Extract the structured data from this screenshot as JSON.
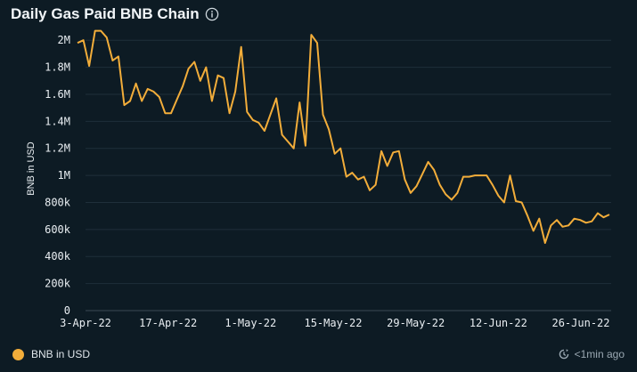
{
  "header": {
    "title": "Daily Gas Paid BNB Chain",
    "info_icon": "info-icon"
  },
  "chart_data": {
    "type": "line",
    "title": "Daily Gas Paid BNB Chain",
    "xlabel": "",
    "ylabel": "BNB in USD",
    "ylim": [
      0,
      2100000
    ],
    "grid": true,
    "legend_placement": "bottom-left",
    "x_ticks": [
      "3-Apr-22",
      "17-Apr-22",
      "1-May-22",
      "15-May-22",
      "29-May-22",
      "12-Jun-22",
      "26-Jun-22"
    ],
    "y_ticks": [
      {
        "value": 0,
        "label": "0"
      },
      {
        "value": 200000,
        "label": "200k"
      },
      {
        "value": 400000,
        "label": "400k"
      },
      {
        "value": 600000,
        "label": "600k"
      },
      {
        "value": 800000,
        "label": "800k"
      },
      {
        "value": 1000000,
        "label": "1M"
      },
      {
        "value": 1200000,
        "label": "1.2M"
      },
      {
        "value": 1400000,
        "label": "1.4M"
      },
      {
        "value": 1600000,
        "label": "1.6M"
      },
      {
        "value": 1800000,
        "label": "1.8M"
      },
      {
        "value": 2000000,
        "label": "2M"
      }
    ],
    "x_start": "2022-04-03",
    "x_end": "2022-06-30",
    "series": [
      {
        "name": "BNB in USD",
        "color": "#f2ad3a",
        "values": [
          1980000,
          2000000,
          1810000,
          2070000,
          2070000,
          2020000,
          1850000,
          1880000,
          1520000,
          1550000,
          1680000,
          1550000,
          1640000,
          1620000,
          1580000,
          1460000,
          1460000,
          1560000,
          1660000,
          1790000,
          1840000,
          1700000,
          1800000,
          1550000,
          1740000,
          1720000,
          1460000,
          1620000,
          1950000,
          1470000,
          1410000,
          1390000,
          1330000,
          1450000,
          1570000,
          1300000,
          1250000,
          1200000,
          1540000,
          1220000,
          2040000,
          1980000,
          1450000,
          1340000,
          1160000,
          1200000,
          990000,
          1020000,
          970000,
          990000,
          890000,
          930000,
          1180000,
          1070000,
          1170000,
          1180000,
          970000,
          870000,
          920000,
          1010000,
          1100000,
          1040000,
          930000,
          860000,
          820000,
          870000,
          990000,
          990000,
          1000000,
          1000000,
          1000000,
          930000,
          850000,
          800000,
          1000000,
          810000,
          800000,
          700000,
          590000,
          680000,
          500000,
          630000,
          670000,
          620000,
          630000,
          680000,
          670000,
          650000,
          660000,
          720000,
          690000,
          710000
        ]
      }
    ]
  },
  "legend": {
    "label": "BNB in USD",
    "color": "#f2ad3a"
  },
  "footer": {
    "updated": "<1min ago",
    "icon": "refresh-clock-icon"
  }
}
